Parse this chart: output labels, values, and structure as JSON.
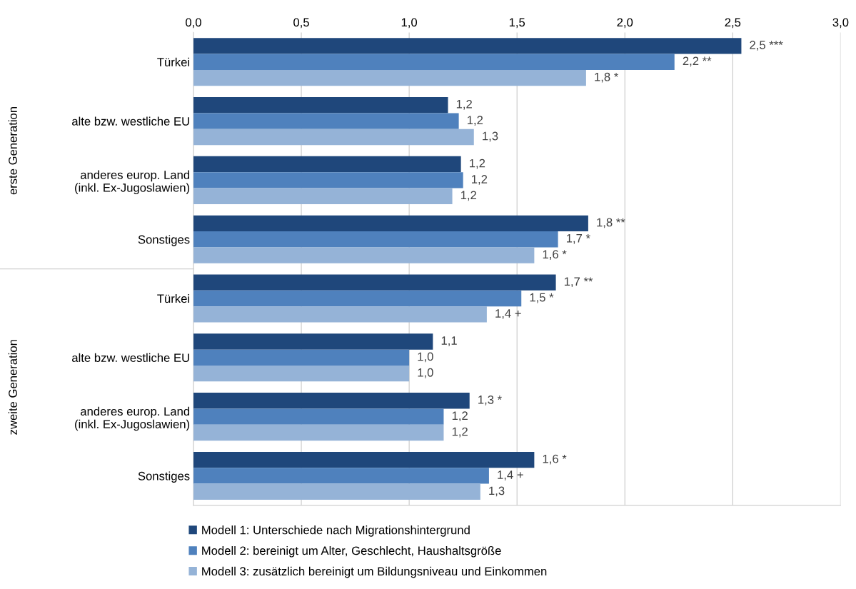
{
  "chart_data": {
    "type": "bar",
    "orientation": "horizontal",
    "categories": [
      "Türkei",
      "alte bzw. westliche EU",
      "anderes europ. Land\n(inkl. Ex-Jugoslawien)",
      "Sonstiges",
      "Türkei",
      "alte bzw. westliche EU",
      "anderes europ. Land\n(inkl. Ex-Jugoslawien)",
      "Sonstiges"
    ],
    "series": [
      {
        "name": "Modell 1: Unterschiede nach Migrationshintergrund",
        "color": "#1f477b",
        "values": [
          2.54,
          1.18,
          1.24,
          1.83,
          1.68,
          1.11,
          1.28,
          1.58
        ],
        "value_labels": [
          "2,5 ***",
          "1,2",
          "1,2",
          "1,8 **",
          "1,7 **",
          "1,1",
          "1,3 *",
          "1,6 *"
        ]
      },
      {
        "name": "Modell 2: bereinigt um Alter, Geschlecht, Haushaltsgröße",
        "color": "#4f81bd",
        "values": [
          2.23,
          1.23,
          1.25,
          1.69,
          1.52,
          1.0,
          1.16,
          1.37
        ],
        "value_labels": [
          "2,2 **",
          "1,2",
          "1,2",
          "1,7 *",
          "1,5 *",
          "1,0",
          "1,2",
          "1,4 +"
        ]
      },
      {
        "name": "Modell 3: zusätzlich bereinigt um Bildungsniveau und Einkommen",
        "color": "#95b3d7",
        "values": [
          1.82,
          1.3,
          1.2,
          1.58,
          1.36,
          1.0,
          1.16,
          1.33
        ],
        "value_labels": [
          "1,8 *",
          "1,3",
          "1,2",
          "1,6 *",
          "1,4 +",
          "1,0",
          "1,2",
          "1,3"
        ]
      }
    ],
    "annotations": [
      "erste Generation",
      "zweite Generation"
    ],
    "xlim": [
      0,
      3
    ],
    "xticks": [
      {
        "value": 0,
        "label": "0,0"
      },
      {
        "value": 0.5,
        "label": "0,5"
      },
      {
        "value": 1,
        "label": "1,0"
      },
      {
        "value": 1.5,
        "label": "1,5"
      },
      {
        "value": 2,
        "label": "2,0"
      },
      {
        "value": 2.5,
        "label": "2,5"
      },
      {
        "value": 3,
        "label": "3,0"
      }
    ],
    "grid": "x",
    "legend": "bottom"
  }
}
